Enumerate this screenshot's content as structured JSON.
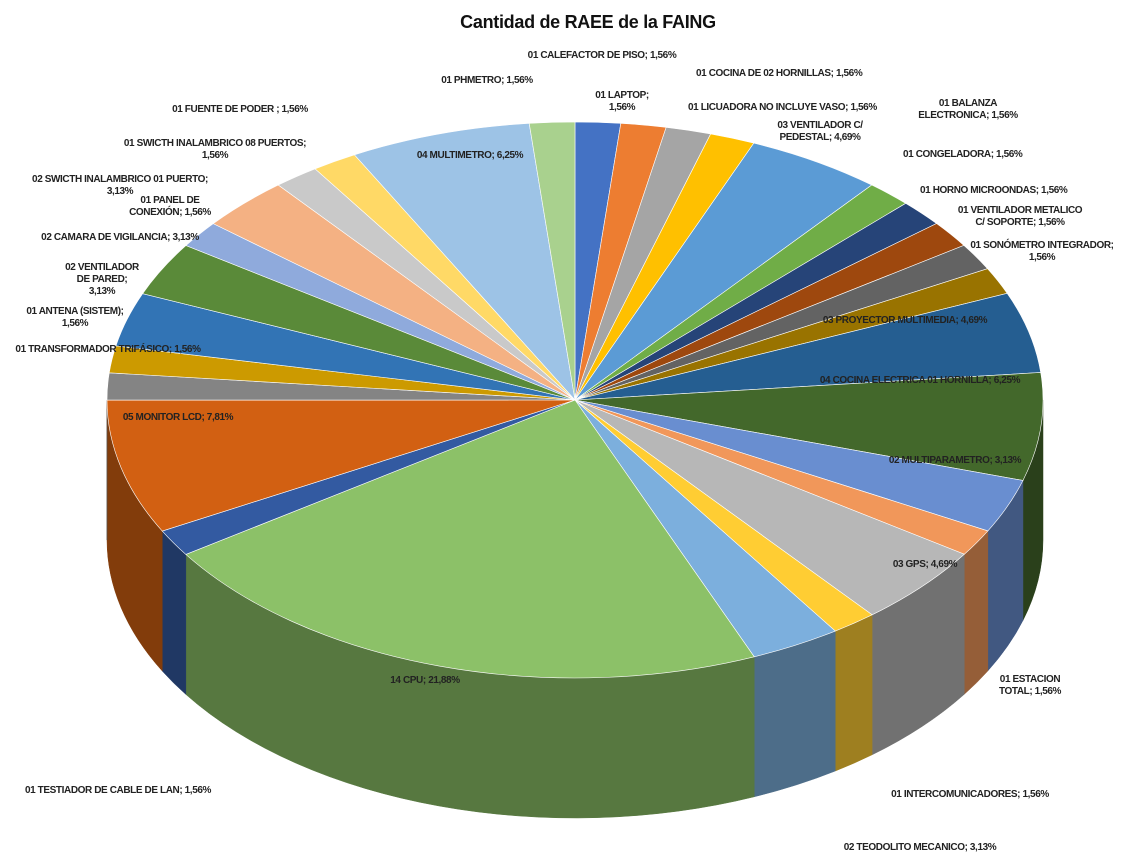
{
  "chart_data": {
    "type": "pie",
    "title": "Cantidad de RAEE de la FAING",
    "labels": [
      "01 CALEFACTOR DE PISO; 1,56%",
      "01 LAPTOP; 1,56%",
      "01 COCINA DE 02 HORNILLAS; 1,56%",
      "01 LICUADORA NO INCLUYE VASO; 1,56%",
      "03 VENTILADOR C/ PEDESTAL; 4,69%",
      "01 BALANZA ELECTRONICA; 1,56%",
      "01 CONGELADORA; 1,56%",
      "01 HORNO MICROONDAS; 1,56%",
      "01 VENTILADOR METALICO C/ SOPORTE; 1,56%",
      "01 SONÓMETRO INTEGRADOR; 1,56%",
      "03 PROYECTOR MULTIMEDIA; 4,69%",
      "04 COCINA ELECTRICA 01 HORNILLA; 6,25%",
      "02 MULTIPARAMETRO; 3,13%",
      "01 ESTACION TOTAL; 1,56%",
      "03 GPS; 4,69%",
      "01 INTERCOMUNICADORES; 1,56%",
      "02 TEODOLITO MECANICO; 3,13%",
      "14 CPU; 21,88%",
      "01 TESTIADOR DE CABLE DE LAN; 1,56%",
      "05 MONITOR LCD; 7,81%",
      "01 TRANSFORMADOR TRIFÁSICO; 1,56%",
      "01 ANTENA (SISTEM); 1,56%",
      "02 VENTILADOR DE PARED; 3,13%",
      "02 CAMARA DE VIGILANCIA; 3,13%",
      "01 PANEL DE CONEXIÓN; 1,56%",
      "02 SWICTH INALAMBRICO 01 PUERTO; 3,13%",
      "01 SWICTH INALAMBRICO 08 PUERTOS; 1,56%",
      "01 FUENTE DE PODER ; 1,56%",
      "04 MULTIMETRO; 6,25%",
      "01 PHMETRO; 1,56%"
    ],
    "values": [
      1.56,
      1.56,
      1.56,
      1.56,
      4.69,
      1.56,
      1.56,
      1.56,
      1.56,
      1.56,
      4.69,
      6.25,
      3.13,
      1.56,
      4.69,
      1.56,
      3.13,
      21.88,
      1.56,
      7.81,
      1.56,
      1.56,
      3.13,
      3.13,
      1.56,
      3.13,
      1.56,
      1.56,
      6.25,
      1.56
    ],
    "colors": [
      "#4472c4",
      "#ed7d31",
      "#a5a5a5",
      "#ffc000",
      "#5b9bd5",
      "#70ad47",
      "#264478",
      "#9e480e",
      "#636363",
      "#997300",
      "#255e91",
      "#43682b",
      "#698ed0",
      "#f1975a",
      "#b7b7b7",
      "#ffcd33",
      "#7cafdd",
      "#8cc168",
      "#335aa1",
      "#d26012",
      "#848484",
      "#cc9a00",
      "#3274b5",
      "#5a8a39",
      "#8faadc",
      "#f4b183",
      "#c9c9c9",
      "#ffd966",
      "#9dc3e6",
      "#a9d18e"
    ]
  }
}
